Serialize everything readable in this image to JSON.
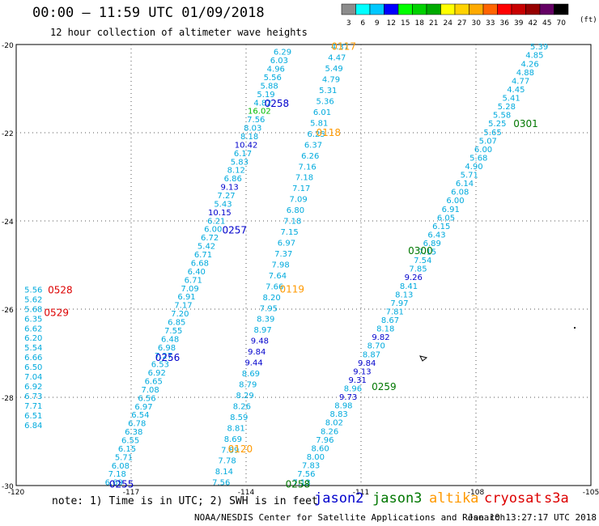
{
  "header": {
    "title": "00:00 – 11:59 UTC 01/09/2018",
    "subtitle": "12 hour collection of altimeter wave heights"
  },
  "color_scale": {
    "labels": [
      "3",
      "6",
      "9",
      "12",
      "15",
      "18",
      "21",
      "24",
      "27",
      "30",
      "33",
      "36",
      "39",
      "42",
      "45",
      "70"
    ],
    "unit": "(ft)",
    "colors": [
      "#8c8c8c",
      "#00ffff",
      "#00c8ff",
      "#0000ff",
      "#00ff00",
      "#00d200",
      "#00aa00",
      "#ffff00",
      "#ffd200",
      "#ffaa00",
      "#ff6400",
      "#ff0000",
      "#c80000",
      "#960000",
      "#640064",
      "#000000"
    ]
  },
  "legend": {
    "note": "note: 1) Time is in UTC; 2) SWH is in feet",
    "satellites": [
      {
        "name": "jason2",
        "color": "#0000cc"
      },
      {
        "name": "jason3",
        "color": "#007700"
      },
      {
        "name": "altika",
        "color": "#ff9900"
      },
      {
        "name": "cryosat",
        "color": "#dd0000"
      },
      {
        "name": "s3a",
        "color": "#dd0000"
      }
    ]
  },
  "footer": {
    "agency": "NOAA/NESDIS Center for Satellite Applications and Research",
    "timestamp": "Jan 10 13:27:17 UTC 2018"
  },
  "chart_data": {
    "type": "scatter",
    "x_ticks": [
      "-120",
      "-117",
      "-114",
      "-111",
      "-108",
      "-105"
    ],
    "y_ticks": [
      "-20",
      "-22",
      "-24",
      "-26",
      "-28",
      "-30"
    ],
    "xlim": [
      -120,
      -105
    ],
    "ylim": [
      -30,
      -20
    ],
    "grid": true,
    "track_time_labels": [
      {
        "text": "0117",
        "lon": -111.45,
        "lat": -20.03,
        "color": "#ff9900"
      },
      {
        "text": "0258",
        "lon": -113.2,
        "lat": -21.32,
        "color": "#0000cc"
      },
      {
        "text": "0118",
        "lon": -111.85,
        "lat": -21.98,
        "color": "#ff9900"
      },
      {
        "text": "0301",
        "lon": -106.7,
        "lat": -21.78,
        "color": "#007700"
      },
      {
        "text": "0257",
        "lon": -114.3,
        "lat": -24.19,
        "color": "#0000cc"
      },
      {
        "text": "0300",
        "lon": -109.45,
        "lat": -24.66,
        "color": "#007700"
      },
      {
        "text": "0528",
        "lon": -118.85,
        "lat": -25.55,
        "color": "#dd0000"
      },
      {
        "text": "0119",
        "lon": -112.8,
        "lat": -25.53,
        "color": "#ff9900"
      },
      {
        "text": "0529",
        "lon": -118.95,
        "lat": -26.06,
        "color": "#dd0000"
      },
      {
        "text": "0256",
        "lon": -116.05,
        "lat": -27.08,
        "color": "#0000cc"
      },
      {
        "text": "0259",
        "lon": -110.4,
        "lat": -27.74,
        "color": "#007700"
      },
      {
        "text": "0120",
        "lon": -114.15,
        "lat": -29.16,
        "color": "#ff9900"
      },
      {
        "text": "0255",
        "lon": -117.25,
        "lat": -29.95,
        "color": "#0000cc"
      },
      {
        "text": "0258",
        "lon": -112.65,
        "lat": -29.95,
        "color": "#007700"
      }
    ],
    "tracks": [
      {
        "start_lon": -113.05,
        "start_lat": -20.16,
        "end_lon": -117.45,
        "end_lat": -29.92,
        "values": [
          "6.29",
          "6.03",
          "4.96",
          "5.56",
          "5.88",
          "5.19",
          "4.82",
          "16.02",
          "7.56",
          "8.03",
          "8.18",
          "10.42",
          "6.17",
          "5.83",
          "8.12",
          "6.86",
          "9.13",
          "7.27",
          "5.43",
          "10.15",
          "6.21",
          "6.00",
          "6.72",
          "5.42",
          "6.71",
          "6.68",
          "6.40",
          "6.71",
          "7.09",
          "6.91",
          "7.17",
          "7.20",
          "6.85",
          "7.55",
          "6.48",
          "6.98",
          "7.27",
          "6.53",
          "6.92",
          "6.65",
          "7.08",
          "6.56",
          "6.97",
          "6.54",
          "6.78",
          "6.38",
          "6.55",
          "6.15",
          "5.71",
          "6.08",
          "7.18",
          "6.69"
        ],
        "colors": {
          "7": "#00bb00",
          "11": "#0000cc",
          "16": "#0000cc",
          "19": "#0000cc"
        }
      },
      {
        "start_lon": -111.55,
        "start_lat": -20.04,
        "end_lon": -114.65,
        "end_lat": -29.92,
        "values": [
          "4.37",
          "4.47",
          "5.49",
          "4.79",
          "5.31",
          "5.36",
          "6.01",
          "5.81",
          "6.25",
          "6.37",
          "6.26",
          "7.16",
          "7.18",
          "7.17",
          "7.09",
          "6.80",
          "7.18",
          "7.15",
          "6.97",
          "7.37",
          "7.98",
          "7.64",
          "7.66",
          "8.20",
          "7.95",
          "8.39",
          "8.97",
          "9.48",
          "9.84",
          "9.44",
          "8.69",
          "8.79",
          "8.29",
          "8.26",
          "8.59",
          "8.81",
          "8.69",
          "7.89",
          "7.78",
          "8.14",
          "7.56"
        ],
        "colors": {
          "27": "#0000cc",
          "28": "#0000cc",
          "29": "#0000cc"
        }
      },
      {
        "start_lon": -106.35,
        "start_lat": -20.04,
        "end_lon": -112.55,
        "end_lat": -29.92,
        "values": [
          "5.39",
          "4.85",
          "4.26",
          "4.88",
          "4.77",
          "4.45",
          "5.41",
          "5.28",
          "5.58",
          "5.25",
          "5.65",
          "5.07",
          "6.00",
          "5.68",
          "4.90",
          "5.71",
          "6.14",
          "6.08",
          "6.00",
          "6.91",
          "6.05",
          "6.15",
          "6.43",
          "6.89",
          "7.15",
          "7.54",
          "7.85",
          "9.26",
          "8.41",
          "8.13",
          "7.97",
          "7.81",
          "8.67",
          "8.18",
          "9.82",
          "8.70",
          "8.87",
          "9.84",
          "9.13",
          "9.31",
          "8.96",
          "9.73",
          "8.98",
          "8.83",
          "8.02",
          "8.26",
          "7.96",
          "8.60",
          "8.00",
          "7.83",
          "7.56",
          "7.13"
        ],
        "colors": {
          "27": "#0000cc",
          "34": "#0000cc",
          "37": "#0000cc",
          "38": "#0000cc",
          "39": "#0000cc",
          "41": "#0000cc"
        }
      },
      {
        "start_lon": -119.55,
        "start_lat": -25.55,
        "end_lon": -119.55,
        "end_lat": -28.62,
        "values": [
          "5.56",
          "5.62",
          "5.68",
          "6.35",
          "6.62",
          "6.20",
          "5.54",
          "6.66",
          "6.50",
          "7.04",
          "6.92",
          "6.73",
          "7.71",
          "6.51",
          "6.84"
        ],
        "colors": {}
      }
    ],
    "default_value_color": "#00aadd"
  }
}
